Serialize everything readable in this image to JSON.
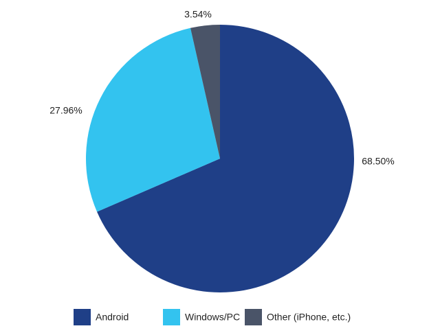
{
  "chart_data": {
    "type": "pie",
    "categories": [
      "Android",
      "Windows/PC",
      "Other (iPhone, etc.)"
    ],
    "values": [
      68.5,
      27.96,
      3.54
    ],
    "value_labels": [
      "68.50%",
      "27.96%",
      "3.54%"
    ],
    "colors": [
      "#1f3f87",
      "#33c3ef",
      "#4a5468"
    ],
    "legend": "bottom"
  }
}
